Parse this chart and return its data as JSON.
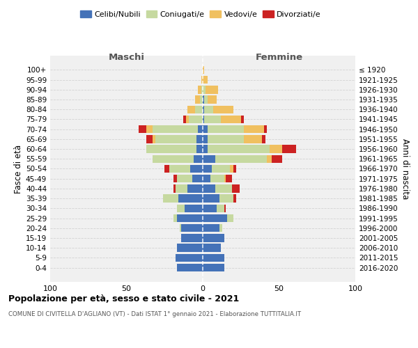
{
  "age_groups": [
    "100+",
    "95-99",
    "90-94",
    "85-89",
    "80-84",
    "75-79",
    "70-74",
    "65-69",
    "60-64",
    "55-59",
    "50-54",
    "45-49",
    "40-44",
    "35-39",
    "30-34",
    "25-29",
    "20-24",
    "15-19",
    "10-14",
    "5-9",
    "0-4"
  ],
  "birth_years": [
    "≤ 1920",
    "1921-1925",
    "1926-1930",
    "1931-1935",
    "1936-1940",
    "1941-1945",
    "1946-1950",
    "1951-1955",
    "1956-1960",
    "1961-1965",
    "1966-1970",
    "1971-1975",
    "1976-1980",
    "1981-1985",
    "1986-1990",
    "1991-1995",
    "1996-2000",
    "2001-2005",
    "2006-2010",
    "2011-2015",
    "2016-2020"
  ],
  "male_celibi": [
    0,
    0,
    0,
    0,
    0,
    0,
    3,
    4,
    4,
    6,
    8,
    7,
    10,
    16,
    12,
    17,
    14,
    14,
    17,
    18,
    17
  ],
  "male_coniugati": [
    0,
    0,
    1,
    2,
    5,
    9,
    30,
    27,
    33,
    27,
    14,
    10,
    8,
    10,
    5,
    2,
    1,
    0,
    0,
    0,
    0
  ],
  "male_vedovi": [
    0,
    1,
    2,
    3,
    5,
    2,
    4,
    2,
    0,
    0,
    0,
    0,
    0,
    0,
    0,
    0,
    0,
    0,
    0,
    0,
    0
  ],
  "male_divorziati": [
    0,
    0,
    0,
    0,
    0,
    2,
    5,
    4,
    0,
    0,
    3,
    2,
    1,
    0,
    0,
    0,
    0,
    0,
    0,
    0,
    0
  ],
  "fem_nubili": [
    0,
    0,
    0,
    1,
    1,
    1,
    3,
    3,
    3,
    8,
    6,
    5,
    8,
    11,
    9,
    16,
    11,
    14,
    12,
    14,
    14
  ],
  "fem_coniugate": [
    0,
    0,
    2,
    2,
    6,
    11,
    24,
    24,
    41,
    34,
    12,
    9,
    11,
    9,
    5,
    4,
    2,
    0,
    0,
    0,
    0
  ],
  "fem_vedove": [
    1,
    3,
    8,
    6,
    13,
    13,
    13,
    12,
    8,
    3,
    2,
    1,
    0,
    0,
    0,
    0,
    0,
    0,
    0,
    0,
    0
  ],
  "fem_divorziate": [
    0,
    0,
    0,
    0,
    0,
    2,
    2,
    2,
    9,
    7,
    2,
    4,
    5,
    2,
    1,
    0,
    0,
    0,
    0,
    0,
    0
  ],
  "color_celibi": "#4472b8",
  "color_coniugati": "#c6d9a0",
  "color_vedovi": "#f0c060",
  "color_divorziati": "#cc2222",
  "bg_color": "#f0f0f0",
  "xlim": 100,
  "title": "Popolazione per età, sesso e stato civile - 2021",
  "subtitle": "COMUNE DI CIVITELLA D'AGLIANO (VT) - Dati ISTAT 1° gennaio 2021 - Elaborazione TUTTITALIA.IT",
  "ylabel_left": "Fasce di età",
  "ylabel_right": "Anni di nascita",
  "label_maschi": "Maschi",
  "label_femmine": "Femmine",
  "legend_labels": [
    "Celibi/Nubili",
    "Coniugati/e",
    "Vedovi/e",
    "Divorziati/e"
  ]
}
